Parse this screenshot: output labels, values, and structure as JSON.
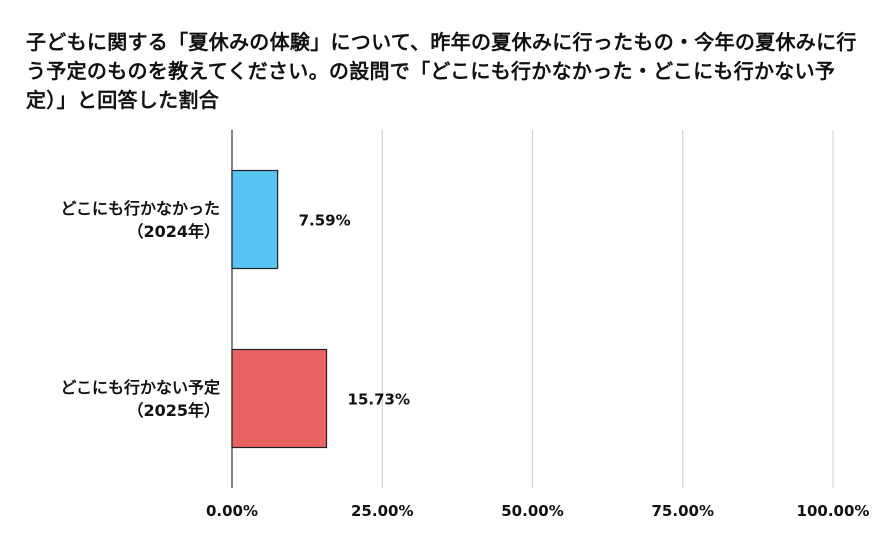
{
  "chart_data": {
    "type": "bar",
    "orientation": "horizontal",
    "title": "子どもに関する「夏休みの体験」について、昨年の夏休みに行ったもの・今年の夏休みに行う予定のものを教えてください。の設問で「どこにも行かなかった・どこにも行かない予定）」と回答した割合",
    "categories": [
      [
        "どこにも行かなかった",
        "（2024年）"
      ],
      [
        "どこにも行かない予定",
        "（2025年）"
      ]
    ],
    "values": [
      7.59,
      15.73
    ],
    "value_labels": [
      "7.59%",
      "15.73%"
    ],
    "bar_colors": [
      "#56c5f3",
      "#ea6262"
    ],
    "xlim": [
      0,
      100
    ],
    "xticks": [
      0,
      25,
      50,
      75,
      100
    ],
    "xtick_labels": [
      "0.00%",
      "25.00%",
      "50.00%",
      "75.00%",
      "100.00%"
    ],
    "grid": true,
    "legend": "none"
  }
}
